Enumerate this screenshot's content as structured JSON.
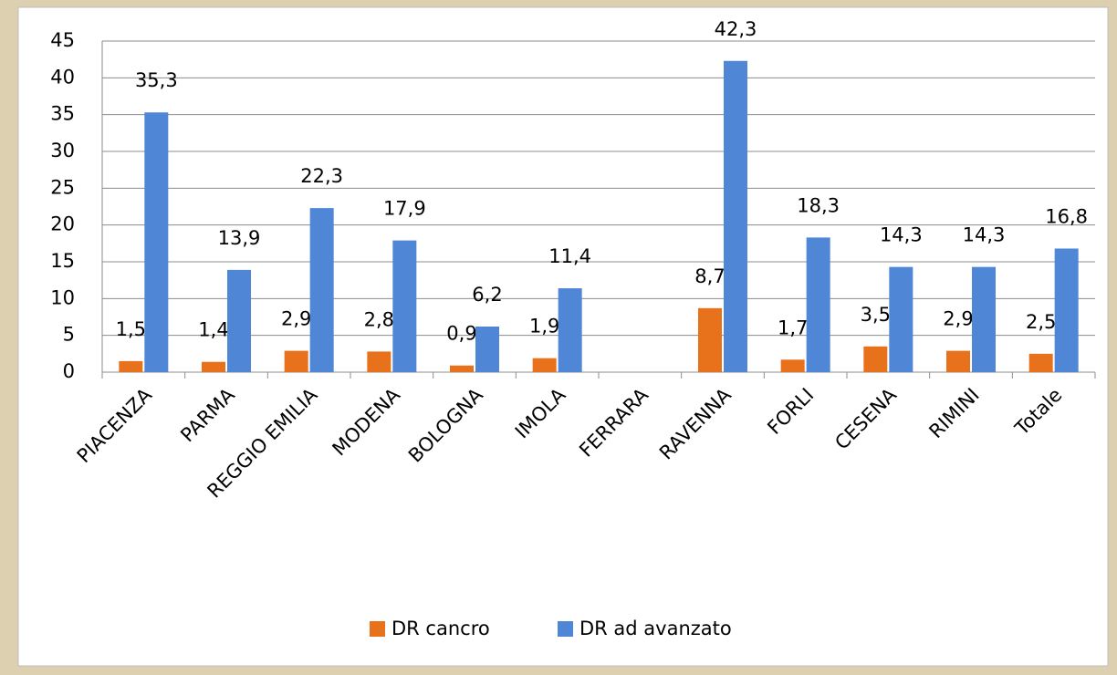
{
  "chart_data": {
    "type": "bar",
    "categories": [
      "PIACENZA",
      "PARMA",
      "REGGIO EMILIA",
      "MODENA",
      "BOLOGNA",
      "IMOLA",
      "FERRARA",
      "RAVENNA",
      "FORLI",
      "CESENA",
      "RIMINI",
      "Totale"
    ],
    "series": [
      {
        "name": "DR cancro",
        "color": "#e8711c",
        "values": [
          1.5,
          1.4,
          2.9,
          2.8,
          0.9,
          1.9,
          null,
          8.7,
          1.7,
          3.5,
          2.9,
          2.5
        ],
        "value_labels": [
          "1,5",
          "1,4",
          "2,9",
          "2,8",
          "0,9",
          "1,9",
          null,
          "8,7",
          "1,7",
          "3,5",
          "2,9",
          "2,5"
        ]
      },
      {
        "name": "DR ad avanzato",
        "color": "#4f86d6",
        "values": [
          35.3,
          13.9,
          22.3,
          17.9,
          6.2,
          11.4,
          null,
          42.3,
          18.3,
          14.3,
          14.3,
          16.8
        ],
        "value_labels": [
          "35,3",
          "13,9",
          "22,3",
          "17,9",
          "6,2",
          "11,4",
          null,
          "42,3",
          "18,3",
          "14,3",
          "14,3",
          "16,8"
        ]
      }
    ],
    "ylim": [
      0,
      45
    ],
    "yticks": [
      0,
      5,
      10,
      15,
      20,
      25,
      30,
      35,
      40,
      45
    ],
    "grid": true,
    "legend": "bottom"
  }
}
